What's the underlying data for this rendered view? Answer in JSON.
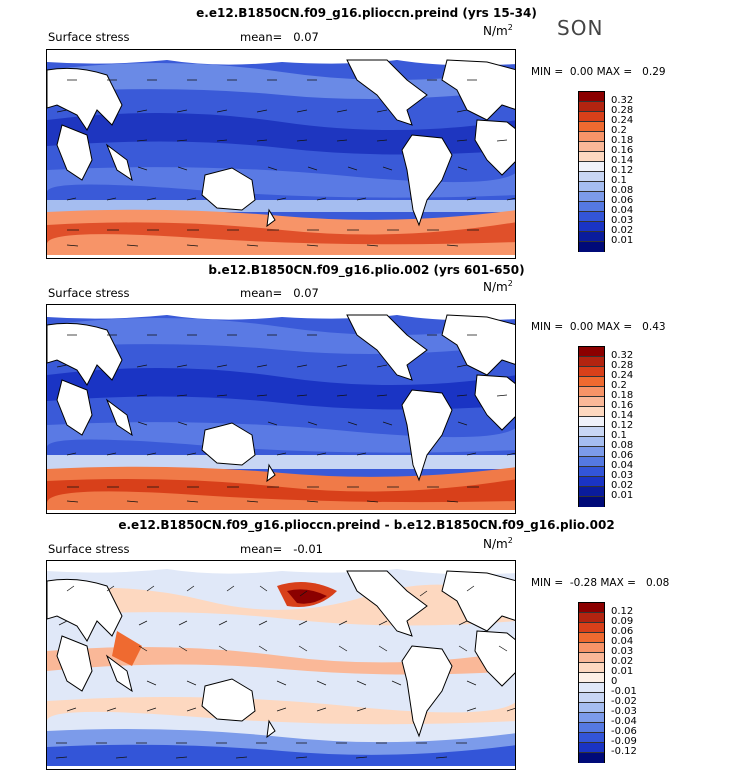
{
  "season": "SON",
  "panels": [
    {
      "title": "e.e12.B1850CN.f09_g16.plioccn.preind (yrs 15-34)",
      "field": "Surface stress",
      "mean_label": "mean=",
      "mean": "0.07",
      "units": "N/m",
      "units_sup": "2",
      "min_label": "MIN =",
      "min": "0.00",
      "max_label": "MAX =",
      "max": "0.29",
      "colorbar_labels": [
        "0.32",
        "0.28",
        "0.24",
        "0.2",
        "0.18",
        "0.16",
        "0.14",
        "0.12",
        "0.1",
        "0.08",
        "0.06",
        "0.04",
        "0.03",
        "0.02",
        "0.01"
      ],
      "colorbar_colors": [
        "#8b0000",
        "#b22410",
        "#d8401a",
        "#ef6a30",
        "#f79468",
        "#fab898",
        "#fdd8c0",
        "#f0f2fa",
        "#c8d6f4",
        "#a5bdf0",
        "#7c9bea",
        "#5579e2",
        "#3355d8",
        "#1a34c4",
        "#0a1c9c",
        "#000a78"
      ]
    },
    {
      "title": "b.e12.B1850CN.f09_g16.plio.002 (yrs 601-650)",
      "field": "Surface stress",
      "mean_label": "mean=",
      "mean": "0.07",
      "units": "N/m",
      "units_sup": "2",
      "min_label": "MIN =",
      "min": "0.00",
      "max_label": "MAX =",
      "max": "0.43",
      "colorbar_labels": [
        "0.32",
        "0.28",
        "0.24",
        "0.2",
        "0.18",
        "0.16",
        "0.14",
        "0.12",
        "0.1",
        "0.08",
        "0.06",
        "0.04",
        "0.03",
        "0.02",
        "0.01"
      ],
      "colorbar_colors": [
        "#8b0000",
        "#b22410",
        "#d8401a",
        "#ef6a30",
        "#f79468",
        "#fab898",
        "#fdd8c0",
        "#f0f2fa",
        "#c8d6f4",
        "#a5bdf0",
        "#7c9bea",
        "#5579e2",
        "#3355d8",
        "#1a34c4",
        "#0a1c9c",
        "#000a78"
      ]
    },
    {
      "title": "e.e12.B1850CN.f09_g16.plioccn.preind - b.e12.B1850CN.f09_g16.plio.002",
      "field": "Surface stress",
      "mean_label": "mean=",
      "mean": "-0.01",
      "units": "N/m",
      "units_sup": "2",
      "min_label": "MIN =",
      "min": "-0.28",
      "max_label": "MAX =",
      "max": "0.08",
      "colorbar_labels": [
        "0.12",
        "0.09",
        "0.06",
        "0.04",
        "0.03",
        "0.02",
        "0.01",
        "0",
        "-0.01",
        "-0.02",
        "-0.03",
        "-0.04",
        "-0.06",
        "-0.09",
        "-0.12"
      ],
      "colorbar_colors": [
        "#8b0000",
        "#b22410",
        "#d8401a",
        "#ef6a30",
        "#f79468",
        "#fab898",
        "#fdd8c0",
        "#fdf0e6",
        "#e0e8f8",
        "#c8d6f4",
        "#a5bdf0",
        "#7c9bea",
        "#5579e2",
        "#3355d8",
        "#1a34c4",
        "#000a78"
      ]
    }
  ]
}
